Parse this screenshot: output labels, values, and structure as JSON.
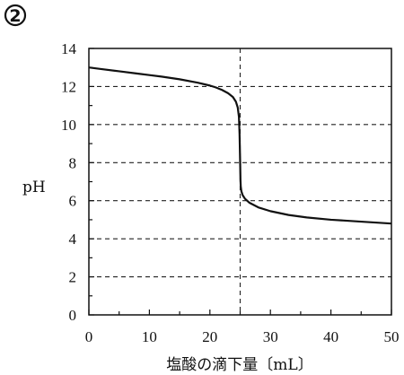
{
  "panel_label": "2",
  "chart_data": {
    "type": "line",
    "title": "",
    "xlabel": "塩酸の滴下量〔mL〕",
    "ylabel": "pH",
    "xlim": [
      0,
      50
    ],
    "ylim": [
      0,
      14
    ],
    "x_ticks": [
      0,
      10,
      20,
      30,
      40,
      50
    ],
    "y_ticks": [
      0,
      2,
      4,
      6,
      8,
      10,
      12,
      14
    ],
    "x_tick_labels": [
      "0",
      "10",
      "20",
      "30",
      "40",
      "50"
    ],
    "y_tick_labels": [
      "0",
      "2",
      "4",
      "6",
      "8",
      "10",
      "12",
      "14"
    ],
    "grid": {
      "horizontal_dashed_at": [
        2,
        4,
        6,
        8,
        10,
        12
      ],
      "vertical_dashed_at": [
        25
      ]
    },
    "colors": {
      "line": "#111111",
      "grid": "#222222",
      "axis": "#111111"
    },
    "series": [
      {
        "x": [
          0,
          2,
          5,
          8,
          10,
          12,
          15,
          18,
          20,
          21,
          22,
          23,
          23.8,
          24.3,
          24.6,
          24.8,
          24.9,
          25,
          25.05,
          25.1,
          25.2,
          25.4,
          25.8,
          26.5,
          28,
          30,
          33,
          36,
          40,
          45,
          50
        ],
        "y": [
          13.0,
          12.92,
          12.8,
          12.68,
          12.6,
          12.52,
          12.38,
          12.2,
          12.05,
          11.95,
          11.82,
          11.65,
          11.45,
          11.2,
          10.9,
          10.4,
          9.5,
          8.0,
          7.1,
          6.75,
          6.5,
          6.3,
          6.1,
          5.9,
          5.65,
          5.45,
          5.25,
          5.12,
          5.0,
          4.9,
          4.8
        ]
      }
    ]
  }
}
